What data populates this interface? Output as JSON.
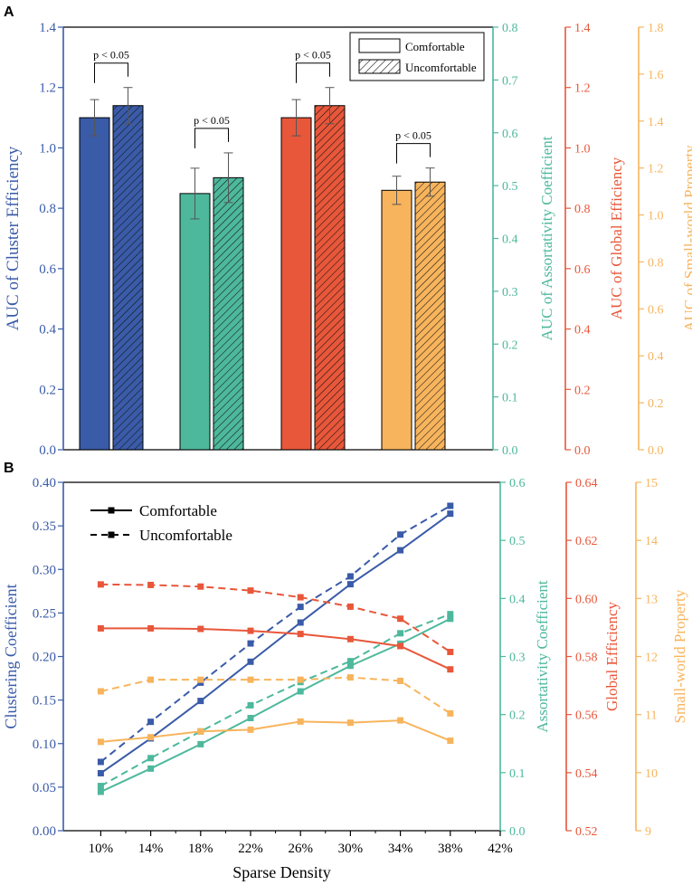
{
  "colors": {
    "blue": "#3A5BA8",
    "teal": "#4DB89C",
    "red": "#E8573A",
    "orange": "#F7B45C",
    "axis_dark": "#222222"
  },
  "chart_data": [
    {
      "panel": "A",
      "type": "bar",
      "groups": [
        {
          "metric": "Cluster Efficiency",
          "axis": "left",
          "color_key": "blue",
          "comfortable": 1.1,
          "comfortable_err": 0.06,
          "uncomfortable": 1.14,
          "uncomfortable_err": 0.06,
          "p_label": "p < 0.05"
        },
        {
          "metric": "Assortativity Coefficient",
          "axis": "y2",
          "color_key": "teal",
          "comfortable": 0.485,
          "comfortable_err": 0.048,
          "uncomfortable": 0.515,
          "uncomfortable_err": 0.047,
          "p_label": "p < 0.05"
        },
        {
          "metric": "Global Efficiency",
          "axis": "y3",
          "color_key": "red",
          "comfortable": 1.1,
          "comfortable_err": 0.06,
          "uncomfortable": 1.14,
          "uncomfortable_err": 0.06,
          "p_label": "p < 0.05"
        },
        {
          "metric": "Small-world Property",
          "axis": "y4",
          "color_key": "orange",
          "comfortable": 1.105,
          "comfortable_err": 0.06,
          "uncomfortable": 1.14,
          "uncomfortable_err": 0.06,
          "p_label": "p < 0.05"
        }
      ],
      "legend": [
        "Comfortable",
        "Uncomfortable"
      ],
      "axes": {
        "left": {
          "label": "AUC of Cluster Efficiency",
          "min": 0,
          "max": 1.4,
          "ticks": [
            "0.0",
            "0.2",
            "0.4",
            "0.6",
            "0.8",
            "1.0",
            "1.2",
            "1.4"
          ]
        },
        "y2": {
          "label": "AUC of Assortativity Coefficient",
          "min": 0,
          "max": 0.8,
          "ticks": [
            "0.0",
            "0.1",
            "0.2",
            "0.3",
            "0.4",
            "0.5",
            "0.6",
            "0.7",
            "0.8"
          ]
        },
        "y3": {
          "label": "AUC of Global Efficiency",
          "min": 0,
          "max": 1.4,
          "ticks": [
            "0.0",
            "0.2",
            "0.4",
            "0.6",
            "0.8",
            "1.0",
            "1.2",
            "1.4"
          ]
        },
        "y4": {
          "label": "AUC of Small-world Property",
          "min": 0,
          "max": 1.8,
          "ticks": [
            "0.0",
            "0.2",
            "0.4",
            "0.6",
            "0.8",
            "1.0",
            "1.2",
            "1.4",
            "1.6",
            "1.8"
          ]
        }
      }
    },
    {
      "panel": "B",
      "type": "line",
      "xlabel": "Sparse Density",
      "x": [
        10,
        14,
        18,
        22,
        26,
        30,
        34,
        38
      ],
      "x_ticks": [
        "10%",
        "14%",
        "18%",
        "22%",
        "26%",
        "30%",
        "34%",
        "38%",
        "42%"
      ],
      "xlim": [
        7,
        42
      ],
      "legend": [
        "Comfortable",
        "Uncomfortable"
      ],
      "axes": {
        "left": {
          "label": "Clustering Coefficient",
          "min": 0,
          "max": 0.4,
          "ticks": [
            "0.00",
            "0.05",
            "0.10",
            "0.15",
            "0.20",
            "0.25",
            "0.30",
            "0.35",
            "0.40"
          ]
        },
        "y2": {
          "label": "Assortativity Coefficient",
          "min": 0,
          "max": 0.6,
          "ticks": [
            "0.0",
            "0.1",
            "0.2",
            "0.3",
            "0.4",
            "0.5",
            "0.6"
          ]
        },
        "y3": {
          "label": "Global Efficiency",
          "min": 0.52,
          "max": 0.65,
          "ticks": [
            "0.52",
            "0.54",
            "0.56",
            "0.58",
            "0.60",
            "0.62",
            "0.64"
          ]
        },
        "y4": {
          "label": "Small-world Property",
          "min": 9,
          "max": 15,
          "ticks": [
            "9",
            "10",
            "11",
            "12",
            "13",
            "14",
            "15"
          ]
        }
      },
      "series": [
        {
          "name": "Clustering Coefficient",
          "condition": "Comfortable",
          "axis": "left",
          "color_key": "blue",
          "values": [
            0.066,
            0.106,
            0.149,
            0.194,
            0.239,
            0.283,
            0.322,
            0.364
          ]
        },
        {
          "name": "Clustering Coefficient",
          "condition": "Uncomfortable",
          "axis": "left",
          "color_key": "blue",
          "values": [
            0.079,
            0.125,
            0.17,
            0.215,
            0.257,
            0.292,
            0.34,
            0.373
          ]
        },
        {
          "name": "Assortativity Coefficient",
          "condition": "Comfortable",
          "axis": "y2",
          "color_key": "teal",
          "values": [
            0.067,
            0.107,
            0.149,
            0.194,
            0.24,
            0.284,
            0.322,
            0.365
          ]
        },
        {
          "name": "Assortativity Coefficient",
          "condition": "Uncomfortable",
          "axis": "y2",
          "color_key": "teal",
          "values": [
            0.077,
            0.125,
            0.171,
            0.216,
            0.256,
            0.292,
            0.34,
            0.373
          ]
        },
        {
          "name": "Global Efficiency",
          "condition": "Comfortable",
          "axis": "y3",
          "color_key": "red",
          "values": [
            0.5955,
            0.5955,
            0.5953,
            0.5946,
            0.5934,
            0.5915,
            0.5889,
            0.5802
          ]
        },
        {
          "name": "Global Efficiency",
          "condition": "Uncomfortable",
          "axis": "y3",
          "color_key": "red",
          "values": [
            0.6119,
            0.6117,
            0.6111,
            0.6096,
            0.6071,
            0.6036,
            0.5991,
            0.5867
          ]
        },
        {
          "name": "Small-world Property",
          "condition": "Comfortable",
          "axis": "y4",
          "color_key": "orange",
          "values": [
            10.53,
            10.61,
            10.71,
            10.74,
            10.88,
            10.86,
            10.9,
            10.55
          ]
        },
        {
          "name": "Small-world Property",
          "condition": "Uncomfortable",
          "axis": "y4",
          "color_key": "orange",
          "values": [
            11.4,
            11.6,
            11.6,
            11.6,
            11.6,
            11.64,
            11.58,
            11.02
          ]
        }
      ]
    }
  ]
}
